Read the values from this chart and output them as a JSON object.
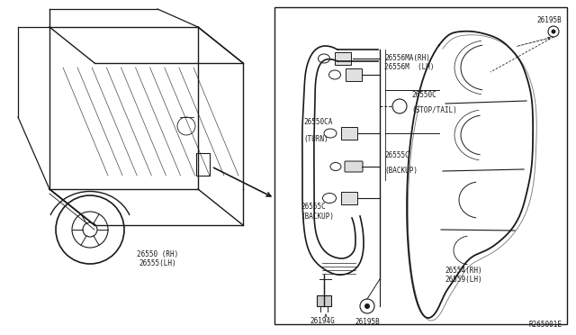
{
  "bg_color": "#ffffff",
  "line_color": "#1a1a1a",
  "diagram_ref": "R265001E",
  "figsize": [
    6.4,
    3.72
  ],
  "dpi": 100,
  "truck_label": "26550 (RH)\n26555(LH)",
  "parts_labels": {
    "bulb1": "26556MA(RH)\n26556M  (LH)",
    "bulb2": "26550C\n(STOP/TAIL)",
    "bulb3": "26550CA\n(TURN)",
    "bulb4": "26555C\n(BACKUP)",
    "bulb5": "26555C\n(BACKUP)",
    "lamp": "26554(RH)\n26559(LH)",
    "conn_top": "26195B",
    "conn_bot1": "26194G",
    "conn_bot2": "26195B"
  }
}
